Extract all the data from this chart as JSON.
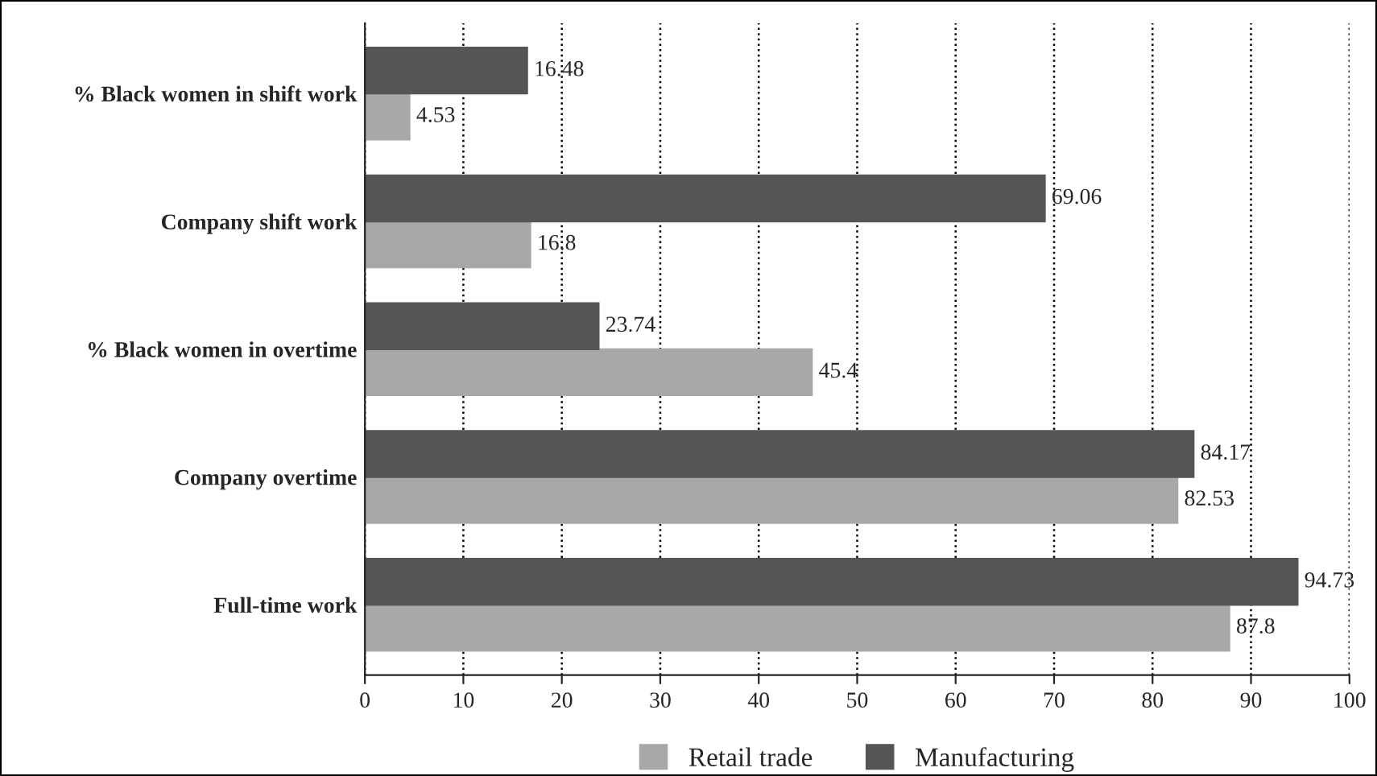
{
  "chart_data": {
    "type": "bar",
    "orientation": "horizontal",
    "categories": [
      "% Black women in shift work",
      "Company shift work",
      "% Black women in overtime",
      "Company overtime",
      "Full-time work"
    ],
    "series": [
      {
        "name": "Retail trade",
        "color": "#a8a8a8",
        "values": [
          4.53,
          16.8,
          45.4,
          82.53,
          87.8
        ]
      },
      {
        "name": "Manufacturing",
        "color": "#555555",
        "values": [
          16.48,
          69.06,
          23.74,
          84.17,
          94.73
        ]
      }
    ],
    "xlim": [
      0,
      100
    ],
    "xticks": [
      0,
      10,
      20,
      30,
      40,
      50,
      60,
      70,
      80,
      90,
      100
    ],
    "grid": "x",
    "legend": "bottom",
    "data_labels": true
  }
}
